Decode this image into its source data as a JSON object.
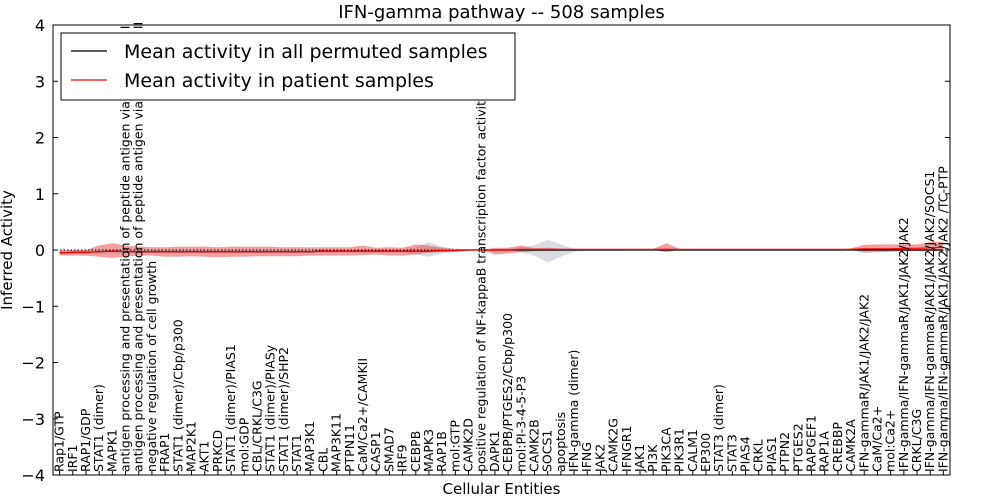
{
  "chart_data": {
    "type": "line",
    "title": "IFN-gamma pathway -- 508 samples",
    "xlabel": "Cellular Entities",
    "ylabel": "Inferred Activity",
    "ylim": [
      -4,
      4
    ],
    "yticks": [
      -4,
      -3,
      -2,
      -1,
      0,
      1,
      2,
      3,
      4
    ],
    "ytick_labels": [
      "−4",
      "−3",
      "−2",
      "−1",
      "0",
      "1",
      "2",
      "3",
      "4"
    ],
    "legend": {
      "placement": "top-left",
      "entries": [
        {
          "name": "Mean activity in all permuted samples",
          "color": "#000000"
        },
        {
          "name": "Mean activity in patient samples",
          "color": "#ff0000"
        }
      ]
    },
    "categories": [
      "Rap1/GTP",
      "IRF1",
      "RAP1/GDP",
      "STAT1 (dimer)",
      "MAPK1",
      "antigen processing and presentation of peptide antigen via MHC class I",
      "antigen processing and presentation of peptide antigen via MHC class II",
      "negative regulation of cell growth",
      "FRAP1",
      "STAT1 (dimer)/Cbp/p300",
      "MAP2K1",
      "AKT1",
      "PRKCD",
      "STAT1 (dimer)/PIAS1",
      "mol:GDP",
      "CBL/CRKL/C3G",
      "STAT1 (dimer)/PIASy",
      "STAT1 (dimer)/SHP2",
      "STAT1",
      "MAP3K1",
      "CBL",
      "MAP3K11",
      "PTPN11",
      "CaM/Ca2+/CAMKII",
      "CASP1",
      "SMAD7",
      "IRF9",
      "CEBPB",
      "MAPK3",
      "RAP1B",
      "mol:GTP",
      "CAMK2D",
      "positive regulation of NF-kappaB transcription factor activity",
      "DAPK1",
      "CEBPB/PTGES2/Cbp/p300",
      "mol:PI-3-4-5-P3",
      "CAMK2B",
      "SOCS1",
      "apoptosis",
      "IFN-gamma (dimer)",
      "IFNG",
      "JAK2",
      "CAMK2G",
      "IFNGR1",
      "JAK1",
      "PI3K",
      "PIK3CA",
      "PIK3R1",
      "CALM1",
      "EP300",
      "STAT3 (dimer)",
      "STAT3",
      "PIAS4",
      "CRKL",
      "PIAS1",
      "PTPN2",
      "PTGES2",
      "RAPGEF1",
      "RAP1A",
      "CREBBP",
      "CAMK2A",
      "IFN-gammaR/JAK1/JAK2/JAK2",
      "CaM/Ca2+",
      "mol:Ca2+",
      "IFN-gamma/IFN-gammaR/JAK1/JAK2/JAK2",
      "CRKL/C3G",
      "IFN-gamma/IFN-gammaR/JAK1/JAK2/JAK2/SOCS1",
      "IFN-gamma/IFN-gammaR/JAK1/JAK2/JAK2 /TC-PTP"
    ],
    "series": [
      {
        "name": "Mean activity in patient samples",
        "color": "#ff0000",
        "values": [
          -0.05,
          -0.04,
          -0.04,
          -0.03,
          -0.02,
          -0.03,
          -0.03,
          -0.03,
          -0.03,
          -0.03,
          -0.03,
          -0.03,
          -0.03,
          -0.03,
          -0.03,
          -0.03,
          -0.03,
          -0.03,
          -0.03,
          -0.03,
          -0.02,
          -0.02,
          -0.02,
          -0.02,
          -0.02,
          -0.02,
          -0.02,
          -0.02,
          -0.02,
          -0.01,
          -0.01,
          0.0,
          0.0,
          0.0,
          0.0,
          0.01,
          0.01,
          0.01,
          0.01,
          0.01,
          0.01,
          0.01,
          0.01,
          0.01,
          0.01,
          0.01,
          0.01,
          0.01,
          0.01,
          0.01,
          0.01,
          0.01,
          0.01,
          0.01,
          0.01,
          0.01,
          0.01,
          0.01,
          0.01,
          0.01,
          0.01,
          0.02,
          0.02,
          0.02,
          0.03,
          0.03,
          0.04,
          0.05
        ],
        "lower": [
          -0.1,
          -0.1,
          -0.1,
          -0.12,
          -0.14,
          -0.12,
          -0.1,
          -0.1,
          -0.12,
          -0.12,
          -0.11,
          -0.12,
          -0.13,
          -0.12,
          -0.12,
          -0.11,
          -0.11,
          -0.11,
          -0.11,
          -0.1,
          -0.1,
          -0.1,
          -0.1,
          -0.09,
          -0.08,
          -0.1,
          -0.1,
          -0.08,
          -0.05,
          -0.03,
          -0.02,
          -0.01,
          0.0,
          -0.08,
          -0.06,
          -0.04,
          -0.02,
          -0.02,
          -0.01,
          -0.01,
          0.0,
          0.0,
          0.0,
          0.0,
          0.0,
          0.0,
          -0.04,
          0.0,
          0.0,
          0.0,
          0.0,
          0.0,
          0.0,
          0.0,
          0.0,
          0.0,
          0.0,
          0.0,
          0.0,
          0.0,
          0.0,
          -0.05,
          -0.04,
          -0.03,
          -0.02,
          -0.02,
          -0.02,
          -0.02
        ],
        "upper": [
          0.0,
          0.0,
          0.0,
          0.08,
          0.12,
          0.08,
          0.06,
          0.05,
          0.05,
          0.06,
          0.06,
          0.06,
          0.05,
          0.06,
          0.06,
          0.06,
          0.06,
          0.05,
          0.05,
          0.05,
          0.05,
          0.05,
          0.05,
          0.08,
          0.04,
          0.05,
          0.04,
          0.1,
          0.08,
          0.04,
          0.02,
          0.01,
          0.0,
          0.04,
          0.04,
          0.08,
          0.03,
          0.04,
          0.02,
          0.01,
          0.01,
          0.01,
          0.01,
          0.02,
          0.02,
          0.02,
          0.12,
          0.02,
          0.01,
          0.01,
          0.01,
          0.01,
          0.01,
          0.01,
          0.01,
          0.01,
          0.01,
          0.01,
          0.01,
          0.01,
          0.03,
          0.09,
          0.1,
          0.1,
          0.1,
          0.1,
          0.14,
          0.15
        ]
      },
      {
        "name": "Mean activity in all permuted samples",
        "color": "#000000",
        "values": [
          -0.05,
          -0.04,
          -0.04,
          -0.03,
          -0.02,
          -0.03,
          -0.03,
          -0.03,
          -0.03,
          -0.03,
          -0.03,
          -0.03,
          -0.03,
          -0.03,
          -0.03,
          -0.03,
          -0.03,
          -0.03,
          -0.03,
          -0.03,
          -0.02,
          -0.02,
          -0.02,
          -0.02,
          -0.02,
          -0.02,
          -0.02,
          -0.02,
          -0.02,
          -0.01,
          -0.01,
          0.0,
          0.0,
          0.0,
          0.0,
          0.0,
          0.0,
          0.0,
          0.0,
          0.0,
          0.0,
          0.0,
          0.0,
          0.0,
          0.0,
          0.0,
          0.0,
          0.0,
          0.0,
          0.0,
          0.0,
          0.0,
          0.0,
          0.0,
          0.0,
          0.0,
          0.0,
          0.0,
          0.0,
          0.0,
          0.0,
          0.0,
          0.0,
          0.0,
          0.0,
          0.0,
          0.0,
          0.0
        ],
        "lower": [
          -0.08,
          -0.07,
          -0.07,
          -0.06,
          -0.06,
          -0.06,
          -0.06,
          -0.06,
          -0.06,
          -0.06,
          -0.06,
          -0.06,
          -0.06,
          -0.06,
          -0.06,
          -0.06,
          -0.06,
          -0.06,
          -0.06,
          -0.06,
          -0.05,
          -0.05,
          -0.05,
          -0.05,
          -0.05,
          -0.05,
          -0.05,
          -0.08,
          -0.12,
          -0.06,
          -0.03,
          -0.01,
          0.0,
          -0.01,
          -0.02,
          -0.04,
          -0.1,
          -0.22,
          -0.12,
          -0.03,
          -0.01,
          0.0,
          0.0,
          0.0,
          0.0,
          0.0,
          -0.02,
          0.0,
          0.0,
          0.0,
          0.0,
          0.0,
          0.0,
          0.0,
          0.0,
          0.0,
          0.0,
          0.0,
          0.0,
          0.0,
          0.0,
          0.0,
          0.0,
          0.0,
          0.0,
          0.0,
          0.0,
          0.0
        ],
        "upper": [
          -0.02,
          -0.01,
          -0.01,
          0.0,
          0.0,
          0.0,
          0.0,
          0.0,
          0.0,
          0.0,
          0.0,
          0.0,
          0.0,
          0.0,
          0.0,
          0.0,
          0.0,
          0.0,
          0.0,
          0.0,
          0.0,
          0.0,
          0.0,
          0.01,
          0.01,
          0.0,
          0.01,
          0.05,
          0.14,
          0.06,
          0.02,
          0.01,
          0.0,
          0.01,
          0.02,
          0.05,
          0.08,
          0.18,
          0.1,
          0.02,
          0.01,
          0.0,
          0.0,
          0.0,
          0.0,
          0.0,
          0.03,
          0.0,
          0.0,
          0.0,
          0.0,
          0.0,
          0.0,
          0.0,
          0.0,
          0.0,
          0.0,
          0.0,
          0.0,
          0.0,
          0.0,
          0.0,
          0.0,
          0.0,
          0.0,
          0.0,
          0.0,
          0.0
        ]
      }
    ]
  }
}
